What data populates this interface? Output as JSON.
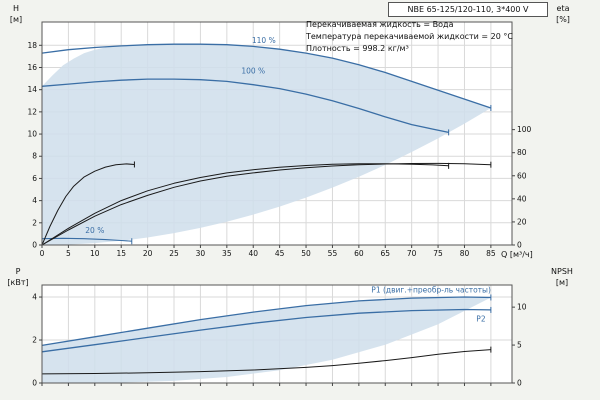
{
  "header": {
    "model": "NBE 65-125/120-110, 3*400 V"
  },
  "info_lines": [
    "Перекачиваемая жидкость = Вода",
    "Температура перекачиваемой жидкости = 20 °C",
    "Плотность = 998.2 кг/м³"
  ],
  "axis_labels": {
    "h": "H",
    "h_unit": "[м]",
    "eta": "eta",
    "eta_unit": "[%]",
    "p": "P",
    "p_unit": "[кВт]",
    "npsh": "NPSH",
    "npsh_unit": "[м]",
    "q": "Q [м³/ч]"
  },
  "colors": {
    "curve_blue": "#3a6ea5",
    "curve_black": "#1a1a1a",
    "envelope": "#cfdeeb",
    "grid": "#d9d9d9",
    "plot_border": "#555555",
    "background": "#f2f3ef"
  },
  "chart_data": [
    {
      "name": "qh-panel",
      "type": "line",
      "title": "NBE 65-125/120-110, 3*400 V",
      "xlabel": "Q [м³/ч]",
      "ylabel_left": "H [м]",
      "ylabel_right": "eta [%]",
      "xlim": [
        0,
        89
      ],
      "ylim": [
        0,
        20.1
      ],
      "x_ticks": [
        0,
        5,
        10,
        15,
        20,
        25,
        30,
        35,
        40,
        45,
        50,
        55,
        60,
        65,
        70,
        75,
        80,
        85
      ],
      "show_x_tick_labels": true,
      "y_ticks_left": [
        0,
        2,
        4,
        6,
        8,
        10,
        12,
        14,
        16,
        18
      ],
      "y_ticks_right": [
        0,
        20,
        40,
        60,
        80,
        100
      ],
      "right_axis_factor": 0.104,
      "envelope": [
        [
          0,
          0
        ],
        [
          0,
          14.3
        ],
        [
          2,
          15.3
        ],
        [
          4,
          16.2
        ],
        [
          6,
          16.8
        ],
        [
          8,
          17.3
        ],
        [
          10,
          17.6
        ],
        [
          12,
          17.8
        ],
        [
          15,
          17.95
        ],
        [
          20,
          18.05
        ],
        [
          25,
          18.1
        ],
        [
          30,
          18.1
        ],
        [
          35,
          18.05
        ],
        [
          40,
          17.9
        ],
        [
          45,
          17.65
        ],
        [
          50,
          17.3
        ],
        [
          55,
          16.85
        ],
        [
          60,
          16.25
        ],
        [
          65,
          15.55
        ],
        [
          70,
          14.75
        ],
        [
          75,
          13.95
        ],
        [
          80,
          13.15
        ],
        [
          85,
          12.35
        ],
        [
          80,
          10.94
        ],
        [
          75,
          9.61
        ],
        [
          70,
          8.38
        ],
        [
          65,
          7.22
        ],
        [
          60,
          6.15
        ],
        [
          55,
          5.17
        ],
        [
          50,
          4.27
        ],
        [
          45,
          3.46
        ],
        [
          40,
          2.74
        ],
        [
          35,
          2.09
        ],
        [
          30,
          1.54
        ],
        [
          25,
          1.07
        ],
        [
          20,
          0.68
        ],
        [
          15,
          0.38
        ],
        [
          10,
          0.17
        ],
        [
          5,
          0.04
        ]
      ],
      "series": [
        {
          "name": "curve-110",
          "color": "#3a6ea5",
          "width": 1.3,
          "end_tick": true,
          "points": [
            [
              0,
              17.3
            ],
            [
              5,
              17.6
            ],
            [
              10,
              17.8
            ],
            [
              15,
              17.95
            ],
            [
              20,
              18.05
            ],
            [
              25,
              18.1
            ],
            [
              30,
              18.1
            ],
            [
              35,
              18.05
            ],
            [
              40,
              17.9
            ],
            [
              45,
              17.65
            ],
            [
              50,
              17.3
            ],
            [
              55,
              16.85
            ],
            [
              60,
              16.25
            ],
            [
              65,
              15.55
            ],
            [
              70,
              14.75
            ],
            [
              75,
              13.95
            ],
            [
              80,
              13.15
            ],
            [
              85,
              12.35
            ]
          ],
          "label": {
            "text": "110 %",
            "x": 42,
            "y": 18.45,
            "anchor": "middle"
          }
        },
        {
          "name": "curve-100",
          "color": "#3a6ea5",
          "width": 1.3,
          "end_tick": true,
          "points": [
            [
              0,
              14.3
            ],
            [
              5,
              14.5
            ],
            [
              10,
              14.7
            ],
            [
              15,
              14.85
            ],
            [
              20,
              14.95
            ],
            [
              25,
              14.95
            ],
            [
              30,
              14.9
            ],
            [
              35,
              14.75
            ],
            [
              40,
              14.45
            ],
            [
              45,
              14.1
            ],
            [
              50,
              13.6
            ],
            [
              55,
              13.0
            ],
            [
              60,
              12.3
            ],
            [
              65,
              11.55
            ],
            [
              70,
              10.85
            ],
            [
              74,
              10.45
            ],
            [
              77,
              10.15
            ]
          ],
          "label": {
            "text": "100 %",
            "x": 40,
            "y": 15.7,
            "anchor": "middle"
          }
        },
        {
          "name": "curve-20",
          "color": "#3a6ea5",
          "width": 1.1,
          "end_tick": true,
          "points": [
            [
              0,
              0.57
            ],
            [
              4,
              0.6
            ],
            [
              8,
              0.57
            ],
            [
              12,
              0.49
            ],
            [
              15,
              0.41
            ],
            [
              17,
              0.34
            ]
          ],
          "label": {
            "text": "20 %",
            "x": 10,
            "y": 1.3,
            "anchor": "middle"
          }
        },
        {
          "name": "eta-110",
          "color": "#1a1a1a",
          "width": 1,
          "axis": "right",
          "end_tick": true,
          "points": [
            [
              0,
              0
            ],
            [
              5,
              13
            ],
            [
              10,
              25
            ],
            [
              15,
              35
            ],
            [
              20,
              43
            ],
            [
              25,
              50
            ],
            [
              30,
              55.5
            ],
            [
              35,
              59.5
            ],
            [
              40,
              62.5
            ],
            [
              45,
              65
            ],
            [
              50,
              67
            ],
            [
              55,
              68.5
            ],
            [
              60,
              69.5
            ],
            [
              65,
              70.2
            ],
            [
              70,
              70.6
            ],
            [
              75,
              70.7
            ],
            [
              80,
              70.4
            ],
            [
              85,
              69.6
            ]
          ]
        },
        {
          "name": "eta-100",
          "color": "#1a1a1a",
          "width": 1,
          "axis": "right",
          "end_tick": true,
          "points": [
            [
              0,
              0
            ],
            [
              5,
              14.5
            ],
            [
              10,
              27.5
            ],
            [
              15,
              38.5
            ],
            [
              20,
              47
            ],
            [
              25,
              53.5
            ],
            [
              30,
              58.5
            ],
            [
              35,
              62.5
            ],
            [
              40,
              65.3
            ],
            [
              45,
              67.4
            ],
            [
              50,
              68.9
            ],
            [
              55,
              69.9
            ],
            [
              60,
              70.4
            ],
            [
              65,
              70.4
            ],
            [
              70,
              70
            ],
            [
              74,
              69.4
            ],
            [
              77,
              68.6
            ]
          ]
        },
        {
          "name": "eta-20",
          "color": "#1a1a1a",
          "width": 1,
          "axis": "right",
          "end_tick": true,
          "points": [
            [
              0,
              0
            ],
            [
              1.5,
              16
            ],
            [
              3,
              30
            ],
            [
              4.5,
              42
            ],
            [
              6,
              51
            ],
            [
              8,
              59
            ],
            [
              10,
              64
            ],
            [
              12,
              67.5
            ],
            [
              14,
              69.5
            ],
            [
              16,
              70.3
            ],
            [
              17.5,
              69.8
            ]
          ]
        }
      ]
    },
    {
      "name": "power-panel",
      "type": "line",
      "xlabel": "",
      "ylabel_left": "P [кВт]",
      "ylabel_right": "NPSH [м]",
      "xlim": [
        0,
        89
      ],
      "ylim": [
        0,
        4.56
      ],
      "x_ticks": [
        0,
        5,
        10,
        15,
        20,
        25,
        30,
        35,
        40,
        45,
        50,
        55,
        60,
        65,
        70,
        75,
        80,
        85
      ],
      "show_x_tick_labels": false,
      "y_ticks_left": [
        0,
        2,
        4
      ],
      "y_ticks_right": [
        0,
        5,
        10
      ],
      "right_axis_factor": 0.353,
      "envelope": [
        [
          0,
          0
        ],
        [
          0,
          1.75
        ],
        [
          10,
          2.15
        ],
        [
          20,
          2.55
        ],
        [
          30,
          2.95
        ],
        [
          40,
          3.3
        ],
        [
          50,
          3.6
        ],
        [
          60,
          3.82
        ],
        [
          70,
          3.95
        ],
        [
          80,
          4.0
        ],
        [
          85,
          3.98
        ],
        [
          75,
          2.73
        ],
        [
          65,
          1.78
        ],
        [
          55,
          1.08
        ],
        [
          45,
          0.59
        ],
        [
          35,
          0.28
        ],
        [
          25,
          0.1
        ],
        [
          15,
          0.02
        ],
        [
          5,
          0.001
        ]
      ],
      "series": [
        {
          "name": "p1-curve",
          "color": "#3a6ea5",
          "width": 1.3,
          "end_tick": true,
          "points": [
            [
              0,
              1.75
            ],
            [
              10,
              2.15
            ],
            [
              20,
              2.55
            ],
            [
              30,
              2.95
            ],
            [
              40,
              3.3
            ],
            [
              50,
              3.6
            ],
            [
              60,
              3.82
            ],
            [
              70,
              3.95
            ],
            [
              80,
              4.0
            ],
            [
              85,
              3.98
            ]
          ],
          "label": {
            "text": "P1 (двиг.+преобр-ль частоты)",
            "x": 85,
            "y": 4.32,
            "anchor": "end"
          }
        },
        {
          "name": "p2-curve",
          "color": "#3a6ea5",
          "width": 1.3,
          "end_tick": true,
          "points": [
            [
              0,
              1.45
            ],
            [
              10,
              1.78
            ],
            [
              20,
              2.12
            ],
            [
              30,
              2.46
            ],
            [
              40,
              2.78
            ],
            [
              50,
              3.05
            ],
            [
              60,
              3.25
            ],
            [
              70,
              3.37
            ],
            [
              80,
              3.42
            ],
            [
              85,
              3.4
            ]
          ],
          "label": {
            "text": "P2",
            "x": 84,
            "y": 2.98,
            "anchor": "end"
          }
        },
        {
          "name": "npsh-curve",
          "color": "#1a1a1a",
          "width": 1,
          "axis": "right",
          "end_tick": true,
          "points": [
            [
              0,
              1.2
            ],
            [
              10,
              1.25
            ],
            [
              20,
              1.35
            ],
            [
              30,
              1.5
            ],
            [
              40,
              1.72
            ],
            [
              50,
              2.05
            ],
            [
              55,
              2.3
            ],
            [
              60,
              2.6
            ],
            [
              65,
              2.95
            ],
            [
              70,
              3.35
            ],
            [
              75,
              3.8
            ],
            [
              80,
              4.15
            ],
            [
              85,
              4.4
            ]
          ]
        }
      ]
    }
  ]
}
